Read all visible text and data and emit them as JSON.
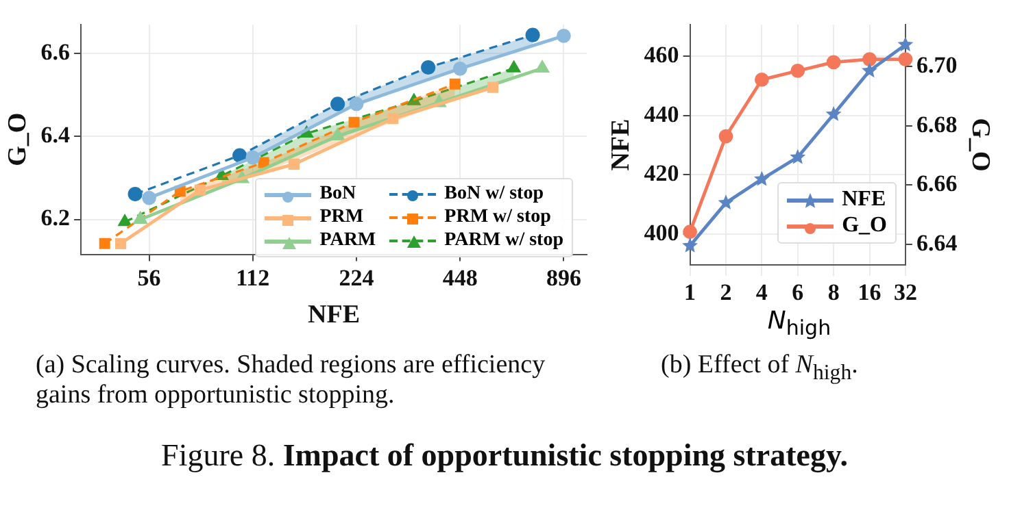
{
  "chart_data": [
    {
      "type": "line",
      "xlabel": "NFE",
      "ylabel": "G_O",
      "log": "x",
      "xlim": [
        35.5,
        1045
      ],
      "xticks": [
        56,
        112,
        224,
        448,
        896
      ],
      "ylim": [
        6.116,
        6.669
      ],
      "yticks": [
        6.2,
        6.4,
        6.6
      ],
      "grid": true,
      "legend": "bottom right",
      "annotations": [
        "(a) Scaling curves. Shaded regions are efficiency gains from opportunistic stopping.",
        "Figure 8. Impact of opportunistic stopping strategy."
      ],
      "series": [
        {
          "name": "BoN",
          "color": "#8dbadc",
          "marker": "circle",
          "line_style": "solid",
          "x": [
            56,
            112,
            224,
            448,
            896
          ],
          "values": [
            6.252,
            6.349,
            6.478,
            6.563,
            6.642
          ]
        },
        {
          "name": "PRM",
          "color": "#fdb77a",
          "marker": "square",
          "line_style": "solid",
          "x": [
            46.3,
            78.8,
            147.6,
            286,
            558
          ],
          "values": [
            6.142,
            6.271,
            6.333,
            6.443,
            6.518
          ]
        },
        {
          "name": "PARM",
          "color": "#90cf90",
          "marker": "triangle",
          "line_style": "solid",
          "x": [
            52.8,
            104.2,
            197.6,
            389.6,
            776
          ],
          "values": [
            6.2,
            6.298,
            6.401,
            6.481,
            6.564
          ]
        },
        {
          "name": "BoN w/ stop",
          "color": "#1f77b4",
          "marker": "circle",
          "line_style": "dashed",
          "x": [
            51,
            102.6,
            197.6,
            362,
            728
          ],
          "values": [
            6.261,
            6.354,
            6.478,
            6.566,
            6.644
          ],
          "lower": [
            null,
            6.337,
            6.455,
            6.537,
            6.618
          ],
          "upper": [
            null,
            6.354,
            6.478,
            6.566,
            6.644
          ]
        },
        {
          "name": "PRM w/ stop",
          "color": "#ff7f0e",
          "marker": "square",
          "line_style": "dashed",
          "x": [
            41.6,
            68.9,
            120.4,
            220.5,
            432.8
          ],
          "values": [
            6.142,
            6.268,
            6.337,
            6.434,
            6.526
          ],
          "lower": [
            null,
            6.238,
            6.313,
            6.4,
            6.49
          ],
          "upper": [
            null,
            6.268,
            6.337,
            6.434,
            6.526
          ]
        },
        {
          "name": "PARM w/ stop",
          "color": "#2ca02c",
          "marker": "triangle",
          "line_style": "dashed",
          "x": [
            47.6,
            91,
            160.6,
            329,
            642
          ],
          "values": [
            6.194,
            6.305,
            6.407,
            6.485,
            6.564
          ],
          "lower": [
            null,
            6.278,
            6.368,
            6.461,
            6.541
          ],
          "upper": [
            null,
            6.305,
            6.407,
            6.485,
            6.564
          ]
        }
      ]
    },
    {
      "type": "line",
      "xlabel": "N$_{high}$",
      "ylabel": "NFE",
      "y2label": "G_O",
      "categories": [
        "1",
        "2",
        "4",
        "6",
        "8",
        "16",
        "32"
      ],
      "ylim": [
        389.5,
        470.7
      ],
      "yticks": [
        400,
        420,
        440,
        460
      ],
      "y2lim": [
        6.633,
        6.7142
      ],
      "y2ticks": [
        6.64,
        6.66,
        6.68,
        {
          "value": 6.7,
          "label": "6.70"
        }
      ],
      "grid": true,
      "legend": "bottom right",
      "annotations": [
        "(b) Effect of N$_{high}$."
      ],
      "series": [
        {
          "name": "NFE",
          "color": "#5b84c4",
          "marker": "star",
          "values": [
            396,
            410.5,
            418.5,
            425.9,
            440.4,
            455.1,
            463.9
          ]
        },
        {
          "name": "G_O",
          "color": "#f4775a",
          "marker": "circle",
          "axis": "y2",
          "values": [
            6.6442,
            6.6765,
            6.6956,
            6.6986,
            6.7015,
            6.7025,
            6.7025
          ]
        }
      ]
    }
  ]
}
